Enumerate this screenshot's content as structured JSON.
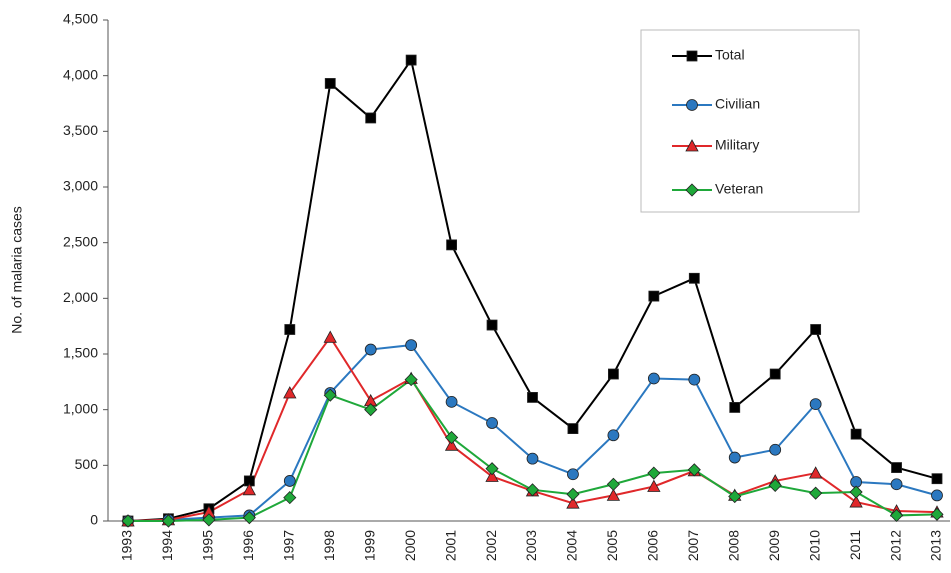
{
  "chart_data": {
    "type": "line",
    "y_label": "No. of malaria cases",
    "categories": [
      "1993",
      "1994",
      "1995",
      "1996",
      "1997",
      "1998",
      "1999",
      "2000",
      "2001",
      "2002",
      "2003",
      "2004",
      "2005",
      "2006",
      "2007",
      "2008",
      "2009",
      "2010",
      "2011",
      "2012",
      "2013"
    ],
    "series": [
      {
        "name": "Total",
        "color": "#000000",
        "marker": "square",
        "values": [
          0,
          20,
          110,
          360,
          1720,
          3930,
          3620,
          4140,
          2480,
          1760,
          1110,
          830,
          1320,
          2020,
          2180,
          1020,
          1320,
          1720,
          780,
          480,
          380
        ]
      },
      {
        "name": "Civilian",
        "color": "#2b78c0",
        "marker": "circle",
        "values": [
          0,
          10,
          30,
          50,
          360,
          1150,
          1540,
          1580,
          1070,
          880,
          560,
          420,
          770,
          1280,
          1270,
          570,
          640,
          1050,
          350,
          330,
          230
        ]
      },
      {
        "name": "Military",
        "color": "#e0282a",
        "marker": "triangle",
        "values": [
          0,
          10,
          80,
          280,
          1150,
          1650,
          1080,
          1280,
          680,
          400,
          270,
          160,
          230,
          310,
          450,
          230,
          360,
          430,
          170,
          90,
          80
        ]
      },
      {
        "name": "Veteran",
        "color": "#1fa83a",
        "marker": "diamond",
        "values": [
          0,
          0,
          10,
          30,
          210,
          1130,
          1000,
          1270,
          750,
          470,
          280,
          240,
          330,
          430,
          460,
          220,
          320,
          250,
          260,
          50,
          60
        ]
      }
    ],
    "ylim": [
      0,
      4500
    ],
    "yticks": [
      0,
      500,
      {
        "value": 1000,
        "label": "1,000"
      },
      {
        "value": 1500,
        "label": "1,500"
      },
      {
        "value": 2000,
        "label": "2,000"
      },
      {
        "value": 2500,
        "label": "2,500"
      },
      {
        "value": 3000,
        "label": "3,000"
      },
      {
        "value": 3500,
        "label": "3,500"
      },
      {
        "value": 4000,
        "label": "4,000"
      },
      {
        "value": 4500,
        "label": "4,500"
      }
    ],
    "legend": "upper right"
  }
}
